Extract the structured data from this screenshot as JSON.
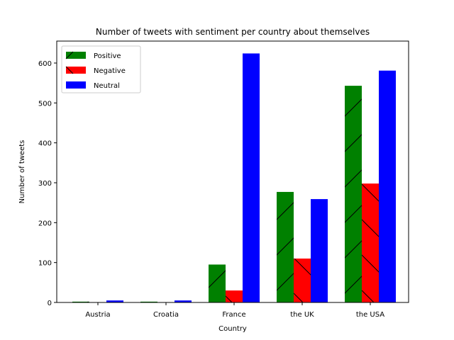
{
  "chart_data": {
    "type": "bar",
    "title": "Number of tweets with sentiment per country about themselves",
    "xlabel": "Country",
    "ylabel": "Number of tweets",
    "categories": [
      "Austria",
      "Croatia",
      "France",
      "the UK",
      "the USA"
    ],
    "series": [
      {
        "name": "Positive",
        "color": "#008000",
        "hatch": "/",
        "values": [
          2,
          2,
          95,
          277,
          543
        ]
      },
      {
        "name": "Negative",
        "color": "#ff0000",
        "hatch": "\\",
        "values": [
          0,
          0,
          30,
          110,
          298
        ]
      },
      {
        "name": "Neutral",
        "color": "#0000ff",
        "hatch": "",
        "values": [
          5,
          5,
          624,
          259,
          581
        ]
      }
    ],
    "ylim": [
      0,
      655
    ],
    "yticks": [
      0,
      100,
      200,
      300,
      400,
      500,
      600
    ],
    "legend": "top-left",
    "grid": false
  }
}
